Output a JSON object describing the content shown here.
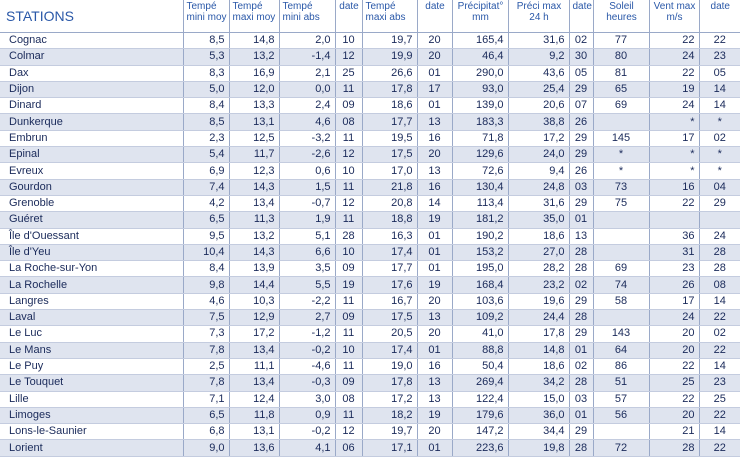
{
  "header": {
    "stations": "STATIONS",
    "tmin_moy": "Tempé mini moy",
    "tmax_moy": "Tempé maxi moy",
    "tmin_abs": "Tempé mini abs",
    "date1": "date",
    "tmax_abs": "Tempé maxi abs",
    "date2": "date",
    "precip": "Précipitat° mm",
    "precip_max": "Préci max 24 h",
    "date3": "date",
    "soleil": "Soleil heures",
    "vent_max": "Vent max m/s",
    "date4": "date"
  },
  "rows": [
    [
      "Cognac",
      "8,5",
      "14,8",
      "2,0",
      "10",
      "19,7",
      "20",
      "165,4",
      "31,6",
      "02",
      "77",
      "22",
      "22"
    ],
    [
      "Colmar",
      "5,3",
      "13,2",
      "-1,4",
      "12",
      "19,9",
      "20",
      "46,4",
      "9,2",
      "30",
      "80",
      "24",
      "23"
    ],
    [
      "Dax",
      "8,3",
      "16,9",
      "2,1",
      "25",
      "26,6",
      "01",
      "290,0",
      "43,6",
      "05",
      "81",
      "22",
      "05"
    ],
    [
      "Dijon",
      "5,0",
      "12,0",
      "0,0",
      "11",
      "17,8",
      "17",
      "93,0",
      "25,4",
      "29",
      "65",
      "19",
      "14"
    ],
    [
      "Dinard",
      "8,4",
      "13,3",
      "2,4",
      "09",
      "18,6",
      "01",
      "139,0",
      "20,6",
      "07",
      "69",
      "24",
      "14"
    ],
    [
      "Dunkerque",
      "8,5",
      "13,1",
      "4,6",
      "08",
      "17,7",
      "13",
      "183,3",
      "38,8",
      "26",
      "",
      "*",
      "*"
    ],
    [
      "Embrun",
      "2,3",
      "12,5",
      "-3,2",
      "11",
      "19,5",
      "16",
      "71,8",
      "17,2",
      "29",
      "145",
      "17",
      "02"
    ],
    [
      "Epinal",
      "5,4",
      "11,7",
      "-2,6",
      "12",
      "17,5",
      "20",
      "129,6",
      "24,0",
      "29",
      "*",
      "*",
      "*"
    ],
    [
      "Evreux",
      "6,9",
      "12,3",
      "0,6",
      "10",
      "17,0",
      "13",
      "72,6",
      "9,4",
      "26",
      "*",
      "*",
      "*"
    ],
    [
      "Gourdon",
      "7,4",
      "14,3",
      "1,5",
      "11",
      "21,8",
      "16",
      "130,4",
      "24,8",
      "03",
      "73",
      "16",
      "04"
    ],
    [
      "Grenoble",
      "4,2",
      "13,4",
      "-0,7",
      "12",
      "20,8",
      "14",
      "113,4",
      "31,6",
      "29",
      "75",
      "22",
      "29"
    ],
    [
      "Guéret",
      "6,5",
      "11,3",
      "1,9",
      "11",
      "18,8",
      "19",
      "181,2",
      "35,0",
      "01",
      "",
      "",
      ""
    ],
    [
      "Île d'Ouessant",
      "9,5",
      "13,2",
      "5,1",
      "28",
      "16,3",
      "01",
      "190,2",
      "18,6",
      "13",
      "",
      "36",
      "24"
    ],
    [
      "Île d'Yeu",
      "10,4",
      "14,3",
      "6,6",
      "10",
      "17,4",
      "01",
      "153,2",
      "27,0",
      "28",
      "",
      "31",
      "28"
    ],
    [
      "La Roche-sur-Yon",
      "8,4",
      "13,9",
      "3,5",
      "09",
      "17,7",
      "01",
      "195,0",
      "28,2",
      "28",
      "69",
      "23",
      "28"
    ],
    [
      "La Rochelle",
      "9,8",
      "14,4",
      "5,5",
      "19",
      "17,6",
      "19",
      "168,4",
      "23,2",
      "02",
      "74",
      "26",
      "08"
    ],
    [
      "Langres",
      "4,6",
      "10,3",
      "-2,2",
      "11",
      "16,7",
      "20",
      "103,6",
      "19,6",
      "29",
      "58",
      "17",
      "14"
    ],
    [
      "Laval",
      "7,5",
      "12,9",
      "2,7",
      "09",
      "17,5",
      "13",
      "109,2",
      "24,4",
      "28",
      "",
      "24",
      "22"
    ],
    [
      "Le Luc",
      "7,3",
      "17,2",
      "-1,2",
      "11",
      "20,5",
      "20",
      "41,0",
      "17,8",
      "29",
      "143",
      "20",
      "02"
    ],
    [
      "Le Mans",
      "7,8",
      "13,4",
      "-0,2",
      "10",
      "17,4",
      "01",
      "88,8",
      "14,8",
      "01",
      "64",
      "20",
      "22"
    ],
    [
      "Le Puy",
      "2,5",
      "11,1",
      "-4,6",
      "11",
      "19,0",
      "16",
      "50,4",
      "18,6",
      "02",
      "86",
      "22",
      "14"
    ],
    [
      "Le Touquet",
      "7,8",
      "13,4",
      "-0,3",
      "09",
      "17,8",
      "13",
      "269,4",
      "34,2",
      "28",
      "51",
      "25",
      "23"
    ],
    [
      "Lille",
      "7,1",
      "12,4",
      "3,0",
      "08",
      "17,2",
      "13",
      "122,4",
      "15,0",
      "03",
      "57",
      "22",
      "25"
    ],
    [
      "Limoges",
      "6,5",
      "11,8",
      "0,9",
      "11",
      "18,2",
      "19",
      "179,6",
      "36,0",
      "01",
      "56",
      "20",
      "22"
    ],
    [
      "Lons-le-Saunier",
      "6,8",
      "13,1",
      "-0,2",
      "12",
      "19,7",
      "20",
      "147,2",
      "34,4",
      "29",
      "",
      "21",
      "14"
    ],
    [
      "Lorient",
      "9,0",
      "13,6",
      "4,1",
      "06",
      "17,1",
      "01",
      "223,6",
      "19,8",
      "28",
      "72",
      "28",
      "22"
    ]
  ]
}
